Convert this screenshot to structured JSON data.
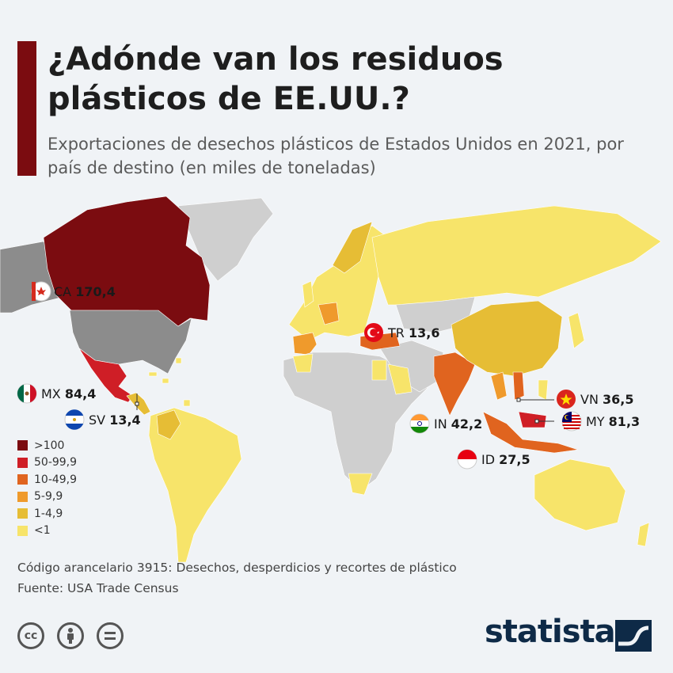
{
  "header": {
    "title": "¿Adónde van los residuos plásticos de EE.UU.?",
    "subtitle": "Exportaciones de desechos plásticos de Estados Unidos en 2021, por país de destino (en miles de toneladas)"
  },
  "colors": {
    "c100": "#7b0c10",
    "c50": "#cf1e26",
    "c10": "#e0641f",
    "c5": "#ef9a2c",
    "c1": "#e6bd35",
    "c0": "#f7e46a",
    "usa": "#8c8c8c",
    "nodata": "#cfcfcf"
  },
  "legend": [
    {
      "label": ">100",
      "color": "#7b0c10"
    },
    {
      "label": "50-99,9",
      "color": "#cf1e26"
    },
    {
      "label": "10-49,9",
      "color": "#e0641f"
    },
    {
      "label": "5-9,9",
      "color": "#ef9a2c"
    },
    {
      "label": "1-4,9",
      "color": "#e6bd35"
    },
    {
      "label": "<1",
      "color": "#f7e46a"
    }
  ],
  "countries": [
    {
      "code": "CA",
      "value": "170,4",
      "flag": "canada-flag"
    },
    {
      "code": "MX",
      "value": "84,4",
      "flag": "mexico-flag"
    },
    {
      "code": "SV",
      "value": "13,4",
      "flag": "el-salvador-flag"
    },
    {
      "code": "TR",
      "value": "13,6",
      "flag": "turkey-flag"
    },
    {
      "code": "IN",
      "value": "42,2",
      "flag": "india-flag"
    },
    {
      "code": "VN",
      "value": "36,5",
      "flag": "vietnam-flag"
    },
    {
      "code": "MY",
      "value": "81,3",
      "flag": "malaysia-flag"
    },
    {
      "code": "ID",
      "value": "27,5",
      "flag": "indonesia-flag"
    }
  ],
  "footer": {
    "note": "Código arancelario 3915: Desechos, desperdicios y recortes de plástico",
    "source": "Fuente: USA Trade Census",
    "brand": "statista",
    "license_icons": [
      "cc-icon",
      "attribution-icon",
      "no-derivatives-icon"
    ]
  }
}
